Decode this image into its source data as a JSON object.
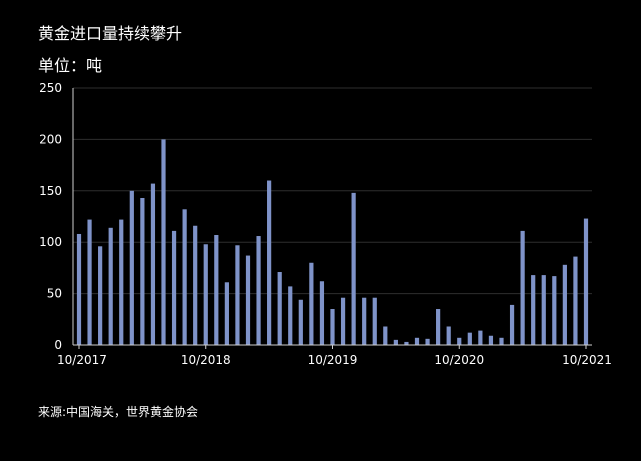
{
  "title": "黄金进口量持续攀升",
  "subtitle": "单位：吨",
  "source": "来源:中国海关，世界黄金协会",
  "chart_data": {
    "type": "bar",
    "title": "黄金进口量持续攀升",
    "ylabel": "单位：吨",
    "ylim": [
      0,
      250
    ],
    "yticks": [
      0,
      50,
      100,
      150,
      200,
      250
    ],
    "x_tick_labels": [
      "10/2017",
      "10/2018",
      "10/2019",
      "10/2020",
      "10/2021"
    ],
    "bar_color": "#7f93c9",
    "grid": true,
    "categories": [
      "10/2017",
      "11/2017",
      "12/2017",
      "01/2018",
      "02/2018",
      "03/2018",
      "04/2018",
      "05/2018",
      "06/2018",
      "07/2018",
      "08/2018",
      "09/2018",
      "10/2018",
      "11/2018",
      "12/2018",
      "01/2019",
      "02/2019",
      "03/2019",
      "04/2019",
      "05/2019",
      "06/2019",
      "07/2019",
      "08/2019",
      "09/2019",
      "10/2019",
      "11/2019",
      "12/2019",
      "01/2020",
      "02/2020",
      "03/2020",
      "04/2020",
      "05/2020",
      "06/2020",
      "07/2020",
      "08/2020",
      "09/2020",
      "10/2020",
      "11/2020",
      "12/2020",
      "01/2021",
      "02/2021",
      "03/2021",
      "04/2021",
      "05/2021",
      "06/2021",
      "07/2021",
      "08/2021",
      "09/2021",
      "10/2021"
    ],
    "values": [
      108,
      122,
      96,
      114,
      122,
      150,
      143,
      157,
      200,
      111,
      132,
      116,
      98,
      107,
      61,
      97,
      87,
      106,
      160,
      71,
      57,
      44,
      80,
      62,
      35,
      46,
      148,
      46,
      46,
      18,
      5,
      3,
      7,
      6,
      35,
      18,
      7,
      12,
      14,
      9,
      7,
      39,
      111,
      68,
      68,
      67,
      78,
      86,
      123
    ]
  }
}
